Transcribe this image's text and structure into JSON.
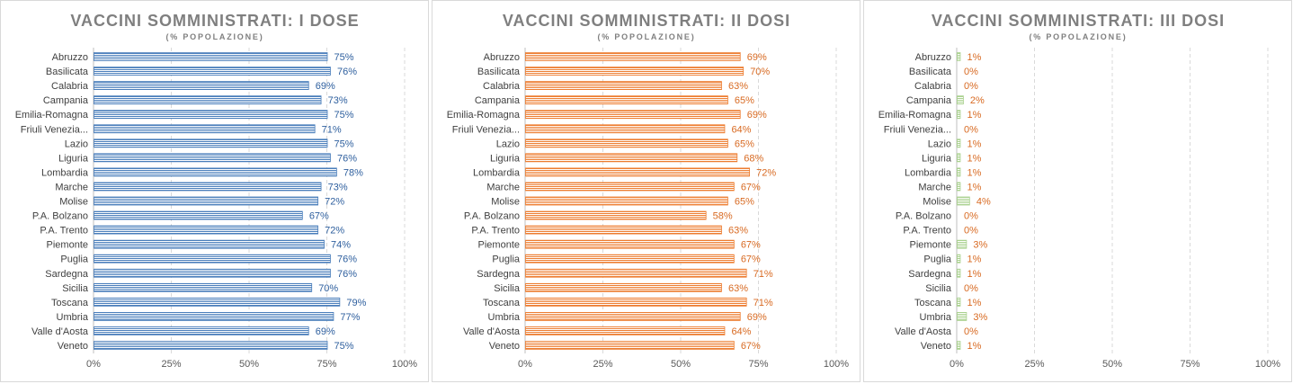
{
  "chart_data": [
    {
      "type": "bar",
      "orientation": "horizontal",
      "title": "VACCINI SOMMINISTRATI: I DOSE",
      "subtitle": "(% POPOLAZIONE)",
      "categories": [
        "Abruzzo",
        "Basilicata",
        "Calabria",
        "Campania",
        "Emilia-Romagna",
        "Friuli Venezia...",
        "Lazio",
        "Liguria",
        "Lombardia",
        "Marche",
        "Molise",
        "P.A. Bolzano",
        "P.A. Trento",
        "Piemonte",
        "Puglia",
        "Sardegna",
        "Sicilia",
        "Toscana",
        "Umbria",
        "Valle d'Aosta",
        "Veneto"
      ],
      "values": [
        75,
        76,
        69,
        73,
        75,
        71,
        75,
        76,
        78,
        73,
        72,
        67,
        72,
        74,
        76,
        76,
        70,
        79,
        77,
        69,
        75
      ],
      "value_labels": [
        "75%",
        "76%",
        "69%",
        "73%",
        "75%",
        "71%",
        "75%",
        "76%",
        "78%",
        "73%",
        "72%",
        "67%",
        "72%",
        "74%",
        "76%",
        "76%",
        "70%",
        "79%",
        "77%",
        "69%",
        "75%"
      ],
      "xlim": [
        0,
        100
      ],
      "x_ticks": [
        0,
        25,
        50,
        75,
        100
      ],
      "x_tick_labels": [
        "0%",
        "25%",
        "50%",
        "75%",
        "100%"
      ],
      "grid": true,
      "color": "#4a7ebb",
      "label_color": "#2e5f9e",
      "legend": "none"
    },
    {
      "type": "bar",
      "orientation": "horizontal",
      "title": "VACCINI SOMMINISTRATI: II DOSI",
      "subtitle": "(% POPOLAZIONE)",
      "categories": [
        "Abruzzo",
        "Basilicata",
        "Calabria",
        "Campania",
        "Emilia-Romagna",
        "Friuli Venezia...",
        "Lazio",
        "Liguria",
        "Lombardia",
        "Marche",
        "Molise",
        "P.A. Bolzano",
        "P.A. Trento",
        "Piemonte",
        "Puglia",
        "Sardegna",
        "Sicilia",
        "Toscana",
        "Umbria",
        "Valle d'Aosta",
        "Veneto"
      ],
      "values": [
        69,
        70,
        63,
        65,
        69,
        64,
        65,
        68,
        72,
        67,
        65,
        58,
        63,
        67,
        67,
        71,
        63,
        71,
        69,
        64,
        67
      ],
      "value_labels": [
        "69%",
        "70%",
        "63%",
        "65%",
        "69%",
        "64%",
        "65%",
        "68%",
        "72%",
        "67%",
        "65%",
        "58%",
        "63%",
        "67%",
        "67%",
        "71%",
        "63%",
        "71%",
        "69%",
        "64%",
        "67%"
      ],
      "xlim": [
        0,
        100
      ],
      "x_ticks": [
        0,
        25,
        50,
        75,
        100
      ],
      "x_tick_labels": [
        "0%",
        "25%",
        "50%",
        "75%",
        "100%"
      ],
      "grid": true,
      "color": "#ed7d31",
      "label_color": "#d86a22",
      "legend": "none"
    },
    {
      "type": "bar",
      "orientation": "horizontal",
      "title": "VACCINI SOMMINISTRATI: III DOSI",
      "subtitle": "(% POPOLAZIONE)",
      "categories": [
        "Abruzzo",
        "Basilicata",
        "Calabria",
        "Campania",
        "Emilia-Romagna",
        "Friuli Venezia...",
        "Lazio",
        "Liguria",
        "Lombardia",
        "Marche",
        "Molise",
        "P.A. Bolzano",
        "P.A. Trento",
        "Piemonte",
        "Puglia",
        "Sardegna",
        "Sicilia",
        "Toscana",
        "Umbria",
        "Valle d'Aosta",
        "Veneto"
      ],
      "values": [
        1,
        0,
        0,
        2,
        1,
        0,
        1,
        1,
        1,
        1,
        4,
        0,
        0,
        3,
        1,
        1,
        0,
        1,
        3,
        0,
        1
      ],
      "value_labels": [
        "1%",
        "0%",
        "0%",
        "2%",
        "1%",
        "0%",
        "1%",
        "1%",
        "1%",
        "1%",
        "4%",
        "0%",
        "0%",
        "3%",
        "1%",
        "1%",
        "0%",
        "1%",
        "3%",
        "0%",
        "1%"
      ],
      "xlim": [
        0,
        100
      ],
      "x_ticks": [
        0,
        25,
        50,
        75,
        100
      ],
      "x_tick_labels": [
        "0%",
        "25%",
        "50%",
        "75%",
        "100%"
      ],
      "grid": true,
      "color": "#a9d18e",
      "label_color": "#d86a22",
      "legend": "none"
    }
  ]
}
